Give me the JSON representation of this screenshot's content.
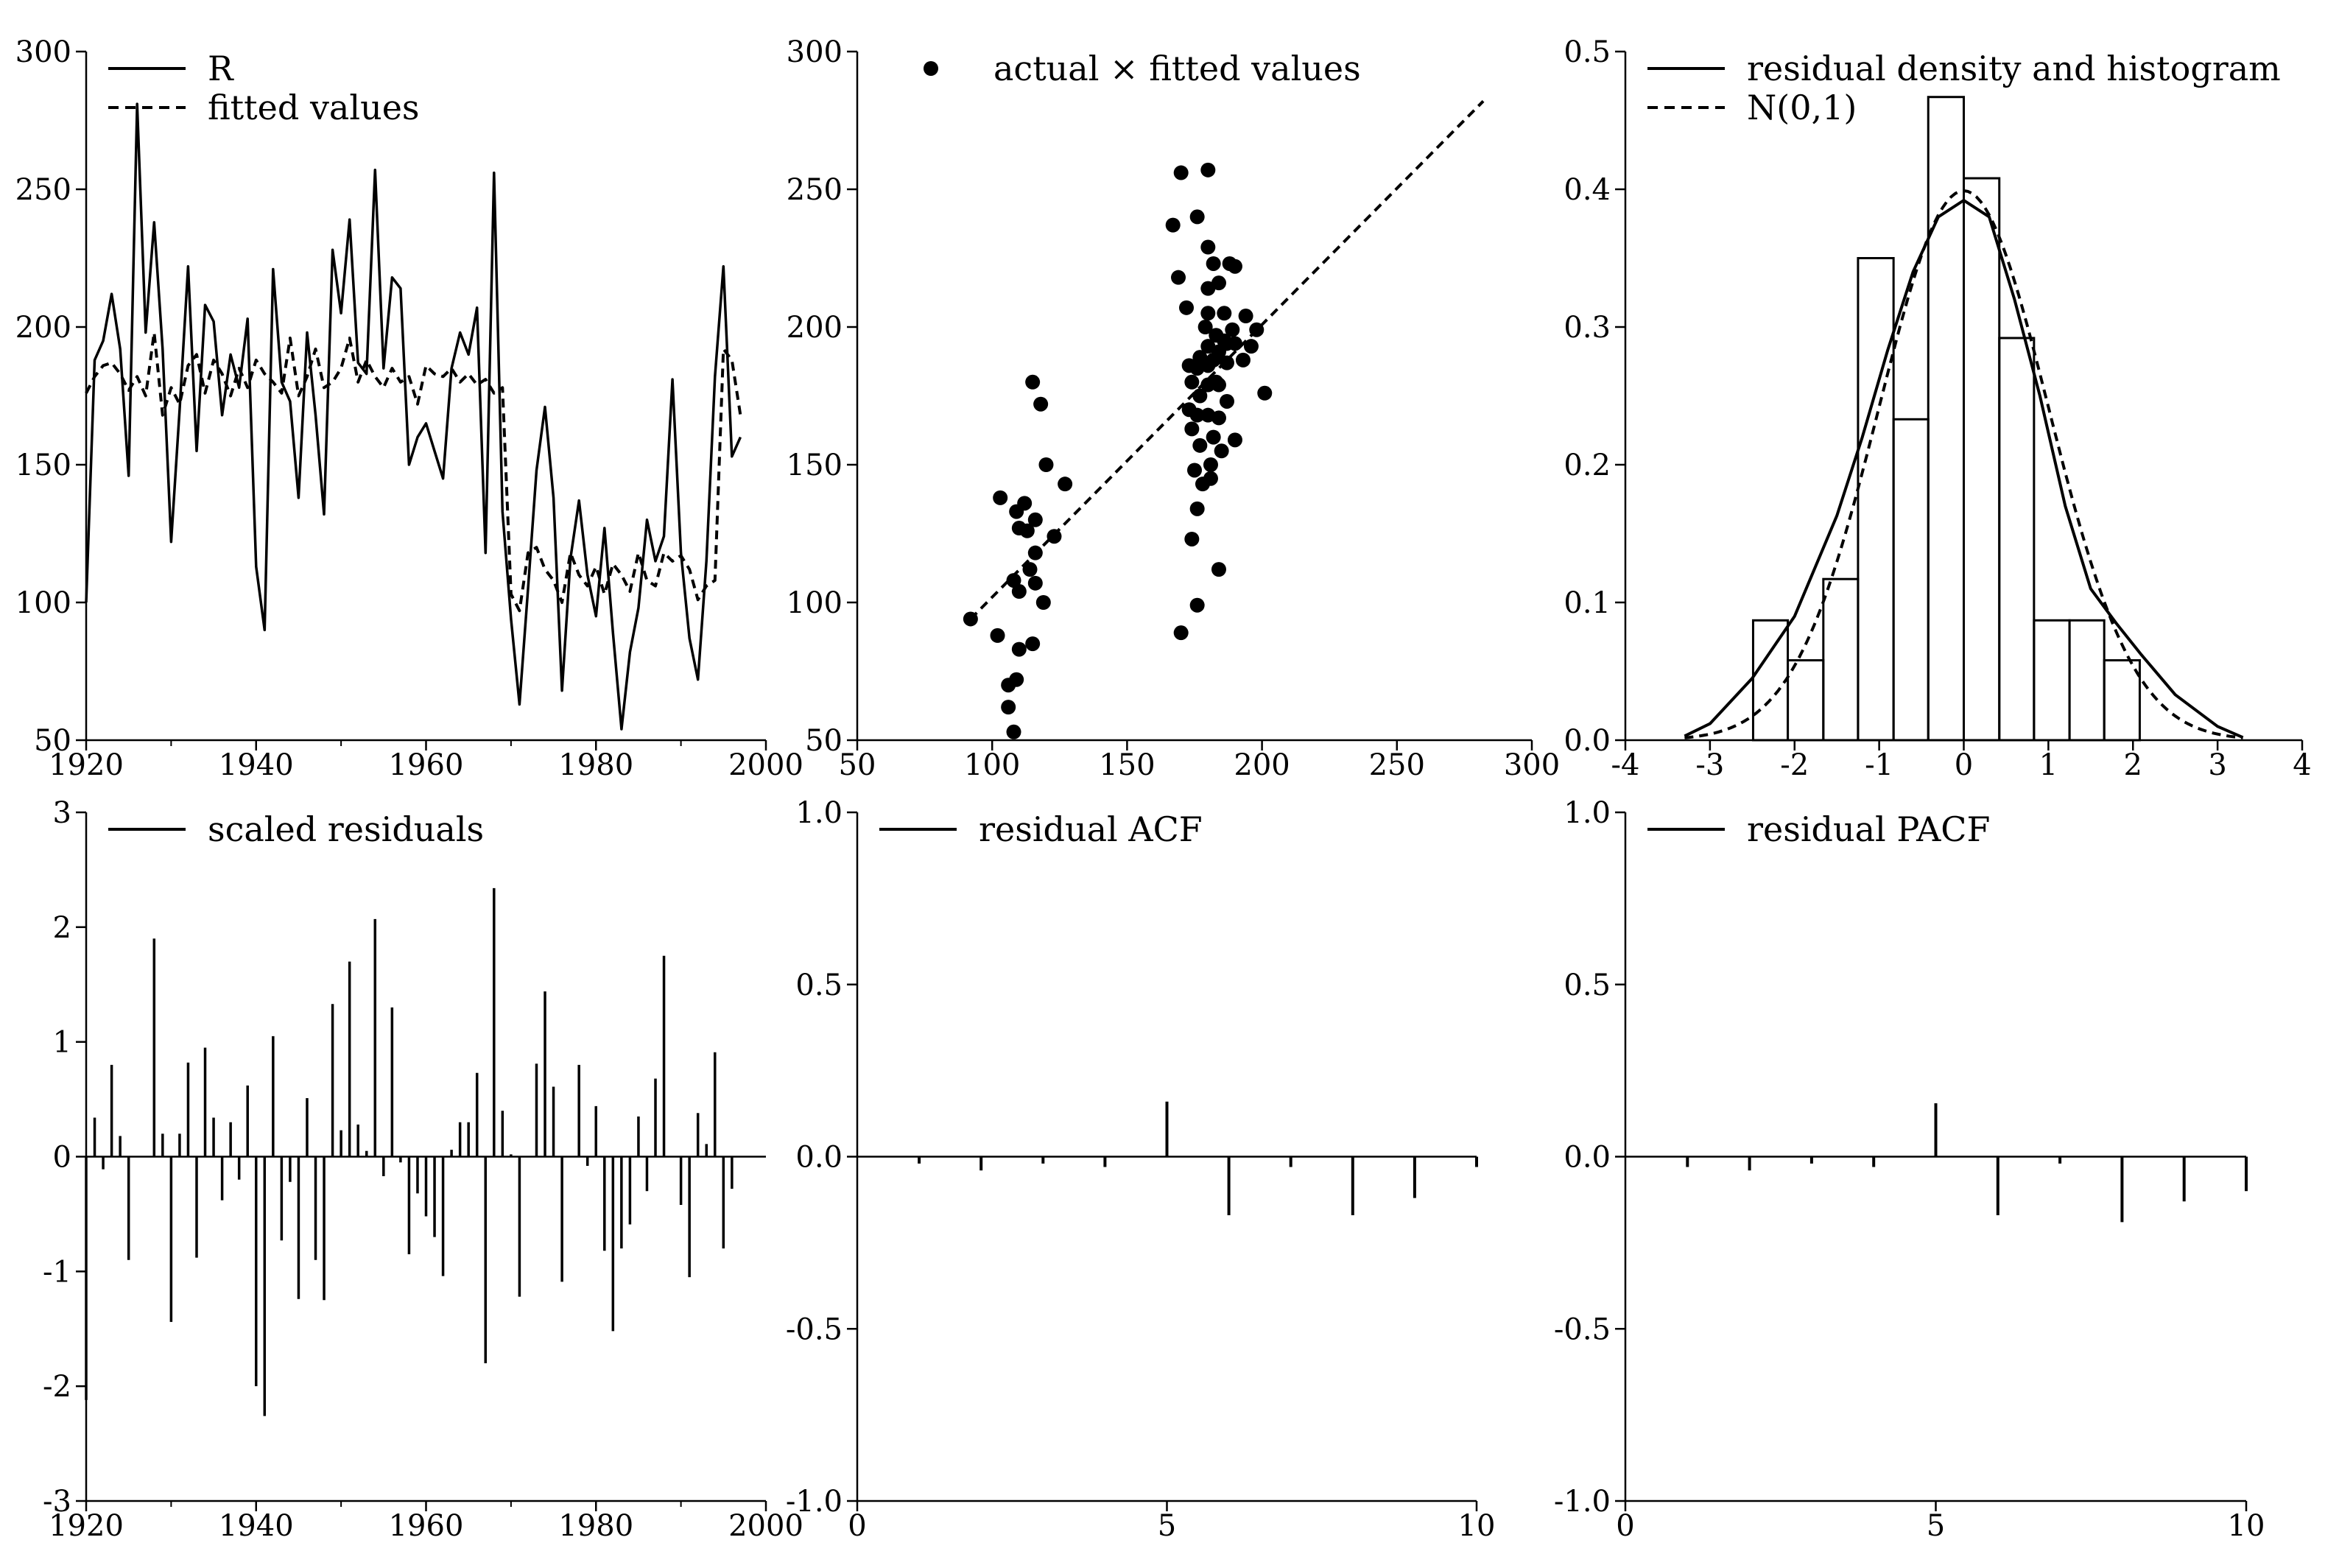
{
  "chart_data": [
    {
      "id": "p1",
      "type": "line",
      "x": [
        1920,
        1921,
        1922,
        1923,
        1924,
        1925,
        1926,
        1927,
        1928,
        1929,
        1930,
        1931,
        1932,
        1933,
        1934,
        1935,
        1936,
        1937,
        1938,
        1939,
        1940,
        1941,
        1942,
        1943,
        1944,
        1945,
        1946,
        1947,
        1948,
        1949,
        1950,
        1951,
        1952,
        1953,
        1954,
        1955,
        1956,
        1957,
        1958,
        1959,
        1960,
        1961,
        1962,
        1963,
        1964,
        1965,
        1966,
        1967,
        1968,
        1969,
        1970,
        1971,
        1972,
        1973,
        1974,
        1975,
        1976,
        1977,
        1978,
        1979,
        1980,
        1981,
        1982,
        1983,
        1984,
        1985,
        1986,
        1987,
        1988,
        1989,
        1990,
        1991,
        1992,
        1993,
        1994,
        1995,
        1996,
        1997
      ],
      "series": [
        {
          "name": "R",
          "style": "solid",
          "values": [
            100,
            188,
            195,
            212,
            192,
            146,
            281,
            198,
            238,
            192,
            122,
            170,
            222,
            155,
            208,
            202,
            168,
            190,
            178,
            203,
            113,
            90,
            221,
            180,
            173,
            138,
            198,
            168,
            132,
            228,
            205,
            239,
            187,
            183,
            257,
            185,
            218,
            214,
            150,
            160,
            165,
            155,
            145,
            185,
            198,
            190,
            207,
            118,
            256,
            133,
            94,
            63,
            105,
            148,
            171,
            138,
            68,
            116,
            137,
            110,
            95,
            127,
            89,
            54,
            82,
            98,
            130,
            115,
            124,
            181,
            118,
            87,
            72,
            115,
            182,
            222,
            153,
            160
          ]
        },
        {
          "name": "fitted values",
          "style": "dashed",
          "values": [
            176,
            182,
            186,
            187,
            183,
            177,
            182,
            175,
            198,
            168,
            178,
            172,
            186,
            190,
            176,
            188,
            183,
            175,
            185,
            178,
            188,
            183,
            180,
            176,
            196,
            175,
            182,
            192,
            178,
            180,
            185,
            196,
            180,
            188,
            182,
            178,
            185,
            180,
            182,
            172,
            186,
            183,
            182,
            185,
            180,
            183,
            179,
            181,
            176,
            178,
            103,
            97,
            118,
            120,
            112,
            108,
            100,
            118,
            110,
            106,
            113,
            103,
            114,
            110,
            104,
            118,
            108,
            106,
            118,
            115,
            117,
            112,
            101,
            106,
            108,
            192,
            188,
            168
          ]
        }
      ],
      "xlim": [
        1920,
        2000
      ],
      "ylim": [
        50,
        300
      ],
      "xticks": [
        "1920",
        "1940",
        "1960",
        "1980",
        "2000"
      ],
      "yticks": [
        "50",
        "100",
        "150",
        "200",
        "250",
        "300"
      ]
    },
    {
      "id": "p2",
      "type": "scatter",
      "series": [
        {
          "name": "actual × fitted values",
          "marker": "dot"
        }
      ],
      "fit_line": {
        "from": [
          92,
          94
        ],
        "to": [
          282,
          282
        ],
        "style": "dashed"
      },
      "points": [
        [
          92,
          94
        ],
        [
          102,
          88
        ],
        [
          103,
          138
        ],
        [
          106,
          70
        ],
        [
          106,
          62
        ],
        [
          108,
          53
        ],
        [
          108,
          108
        ],
        [
          109,
          133
        ],
        [
          109,
          72
        ],
        [
          110,
          104
        ],
        [
          110,
          83
        ],
        [
          110,
          127
        ],
        [
          112,
          136
        ],
        [
          113,
          126
        ],
        [
          114,
          112
        ],
        [
          115,
          85
        ],
        [
          115,
          180
        ],
        [
          116,
          118
        ],
        [
          116,
          107
        ],
        [
          116,
          130
        ],
        [
          118,
          172
        ],
        [
          119,
          100
        ],
        [
          120,
          150
        ],
        [
          123,
          124
        ],
        [
          127,
          143
        ],
        [
          167,
          237
        ],
        [
          169,
          218
        ],
        [
          170,
          256
        ],
        [
          170,
          89
        ],
        [
          172,
          207
        ],
        [
          173,
          170
        ],
        [
          173,
          186
        ],
        [
          174,
          163
        ],
        [
          174,
          180
        ],
        [
          174,
          123
        ],
        [
          175,
          148
        ],
        [
          176,
          134
        ],
        [
          176,
          185
        ],
        [
          176,
          168
        ],
        [
          176,
          240
        ],
        [
          176,
          99
        ],
        [
          177,
          175
        ],
        [
          177,
          157
        ],
        [
          177,
          189
        ],
        [
          178,
          143
        ],
        [
          179,
          200
        ],
        [
          180,
          257
        ],
        [
          180,
          229
        ],
        [
          180,
          214
        ],
        [
          180,
          205
        ],
        [
          180,
          193
        ],
        [
          180,
          186
        ],
        [
          180,
          179
        ],
        [
          180,
          168
        ],
        [
          181,
          150
        ],
        [
          181,
          145
        ],
        [
          182,
          223
        ],
        [
          182,
          188
        ],
        [
          182,
          160
        ],
        [
          183,
          197
        ],
        [
          183,
          180
        ],
        [
          184,
          216
        ],
        [
          184,
          191
        ],
        [
          184,
          179
        ],
        [
          184,
          167
        ],
        [
          184,
          112
        ],
        [
          185,
          155
        ],
        [
          186,
          205
        ],
        [
          186,
          195
        ],
        [
          187,
          173
        ],
        [
          187,
          187
        ],
        [
          187,
          194
        ],
        [
          188,
          223
        ],
        [
          189,
          199
        ],
        [
          190,
          159
        ],
        [
          190,
          222
        ],
        [
          190,
          194
        ],
        [
          193,
          188
        ],
        [
          194,
          204
        ],
        [
          196,
          193
        ],
        [
          198,
          199
        ],
        [
          201,
          176
        ]
      ],
      "xlim": [
        50,
        300
      ],
      "ylim": [
        50,
        300
      ],
      "xticks": [
        "50",
        "100",
        "150",
        "200",
        "250",
        "300"
      ],
      "yticks": [
        "50",
        "100",
        "150",
        "200",
        "250",
        "300"
      ]
    },
    {
      "id": "p3",
      "type": "histogram",
      "series": [
        {
          "name": "residual density and histogram",
          "style": "solid"
        },
        {
          "name": "N(0,1)",
          "style": "dashed"
        }
      ],
      "bins": [
        {
          "from": -2.49,
          "to": -2.08,
          "height": 0.087
        },
        {
          "from": -2.08,
          "to": -1.66,
          "height": 0.058
        },
        {
          "from": -1.66,
          "to": -1.25,
          "height": 0.117
        },
        {
          "from": -1.25,
          "to": -0.83,
          "height": 0.35
        },
        {
          "from": -0.83,
          "to": -0.42,
          "height": 0.233
        },
        {
          "from": -0.42,
          "to": 0.0,
          "height": 0.467
        },
        {
          "from": 0.0,
          "to": 0.42,
          "height": 0.408
        },
        {
          "from": 0.42,
          "to": 0.83,
          "height": 0.292
        },
        {
          "from": 0.83,
          "to": 1.25,
          "height": 0.087
        },
        {
          "from": 1.25,
          "to": 1.66,
          "height": 0.087
        },
        {
          "from": 1.66,
          "to": 2.08,
          "height": 0.058
        }
      ],
      "density_curve": [
        [
          -3.3,
          0.003
        ],
        [
          -3.0,
          0.012
        ],
        [
          -2.5,
          0.045
        ],
        [
          -2.0,
          0.09
        ],
        [
          -1.5,
          0.163
        ],
        [
          -1.2,
          0.22
        ],
        [
          -0.9,
          0.283
        ],
        [
          -0.6,
          0.34
        ],
        [
          -0.3,
          0.38
        ],
        [
          0.0,
          0.392
        ],
        [
          0.3,
          0.38
        ],
        [
          0.6,
          0.32
        ],
        [
          0.9,
          0.25
        ],
        [
          1.2,
          0.17
        ],
        [
          1.5,
          0.11
        ],
        [
          1.8,
          0.085
        ],
        [
          2.1,
          0.062
        ],
        [
          2.5,
          0.033
        ],
        [
          3.0,
          0.01
        ],
        [
          3.3,
          0.002
        ]
      ],
      "normal_curve": {
        "mean": 0,
        "sd": 1,
        "xmin": -3.3,
        "xmax": 3.3
      },
      "xlim": [
        -4,
        4
      ],
      "ylim": [
        0,
        0.5
      ],
      "xticks": [
        "-4",
        "-3",
        "-2",
        "-1",
        "0",
        "1",
        "2",
        "3",
        "4"
      ],
      "yticks": [
        "0.0",
        "0.1",
        "0.2",
        "0.3",
        "0.4",
        "0.5"
      ]
    },
    {
      "id": "p4",
      "type": "bar",
      "series": [
        {
          "name": "scaled residuals",
          "style": "solid"
        }
      ],
      "x": [
        1920,
        1921,
        1922,
        1923,
        1924,
        1925,
        1926,
        1927,
        1928,
        1929,
        1930,
        1931,
        1932,
        1933,
        1934,
        1935,
        1936,
        1937,
        1938,
        1939,
        1940,
        1941,
        1942,
        1943,
        1944,
        1945,
        1946,
        1947,
        1948,
        1949,
        1950,
        1951,
        1952,
        1953,
        1954,
        1955,
        1956,
        1957,
        1958,
        1959,
        1960,
        1961,
        1962,
        1963,
        1964,
        1965,
        1966,
        1967,
        1968,
        1969,
        1970,
        1971,
        1972,
        1973,
        1974,
        1975,
        1976,
        1977,
        1978,
        1979,
        1980,
        1981,
        1982,
        1983,
        1984,
        1985,
        1986,
        1987,
        1988,
        1989,
        1990,
        1991,
        1992,
        1993,
        1994,
        1995,
        1996,
        1997
      ],
      "values": [
        -2.12,
        0.34,
        -0.11,
        0.8,
        0.18,
        -0.9,
        0.0,
        0.0,
        1.9,
        0.2,
        -1.44,
        0.2,
        0.82,
        -0.88,
        0.95,
        0.34,
        -0.38,
        0.3,
        -0.2,
        0.62,
        -2.0,
        -2.26,
        1.05,
        -0.73,
        -0.22,
        -1.24,
        0.51,
        -0.9,
        -1.25,
        1.33,
        0.23,
        1.7,
        0.28,
        0.05,
        2.07,
        -0.17,
        1.3,
        -0.05,
        -0.85,
        -0.32,
        -0.52,
        -0.7,
        -1.04,
        0.06,
        0.3,
        0.3,
        0.73,
        -1.8,
        2.34,
        0.4,
        0.02,
        -1.22,
        0.0,
        0.81,
        1.44,
        0.61,
        -1.09,
        0.0,
        0.8,
        -0.08,
        0.44,
        -0.82,
        -1.52,
        -0.8,
        -0.59,
        0.35,
        -0.3,
        0.68,
        1.75,
        0.0,
        -0.42,
        -1.05,
        0.38,
        0.11,
        0.91,
        -0.8,
        -0.28,
        0.0
      ],
      "xlim": [
        1920,
        2000
      ],
      "ylim": [
        -3,
        3
      ],
      "xticks": [
        "1920",
        "1940",
        "1960",
        "1980",
        "2000"
      ],
      "yticks": [
        "-3",
        "-2",
        "-1",
        "0",
        "1",
        "2",
        "3"
      ]
    },
    {
      "id": "p5",
      "type": "bar",
      "series": [
        {
          "name": "residual ACF",
          "style": "solid"
        }
      ],
      "lags": [
        1,
        2,
        3,
        4,
        5,
        6,
        7,
        8,
        9,
        10
      ],
      "values": [
        -0.02,
        -0.04,
        -0.02,
        -0.03,
        0.16,
        -0.17,
        -0.03,
        -0.17,
        -0.12,
        -0.03
      ],
      "xlim": [
        0,
        10
      ],
      "ylim": [
        -1,
        1
      ],
      "xticks": [
        "0",
        "5",
        "10"
      ],
      "yticks": [
        "-1.0",
        "-0.5",
        "0.0",
        "0.5",
        "1.0"
      ]
    },
    {
      "id": "p6",
      "type": "bar",
      "series": [
        {
          "name": "residual PACF",
          "style": "solid"
        }
      ],
      "lags": [
        1,
        2,
        3,
        4,
        5,
        6,
        7,
        8,
        9,
        10
      ],
      "values": [
        -0.03,
        -0.04,
        -0.02,
        -0.03,
        0.155,
        -0.17,
        -0.02,
        -0.19,
        -0.13,
        -0.1
      ],
      "xlim": [
        0,
        10
      ],
      "ylim": [
        -1,
        1
      ],
      "xticks": [
        "0",
        "5",
        "10"
      ],
      "yticks": [
        "-1.0",
        "-0.5",
        "0.0",
        "0.5",
        "1.0"
      ]
    }
  ]
}
